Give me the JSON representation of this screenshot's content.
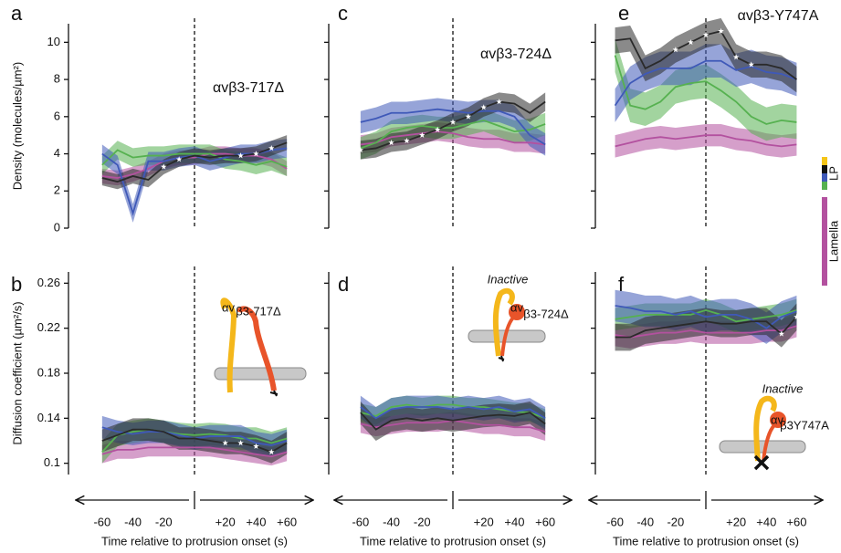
{
  "chart_data": [
    {
      "type": "line",
      "label": "a",
      "title": "αvβ3-717Δ",
      "ylabel": "Density (molecules/µm²)",
      "x": [
        -60,
        -50,
        -40,
        -30,
        -20,
        -10,
        0,
        10,
        20,
        30,
        40,
        50,
        60
      ],
      "xlim": [
        -70,
        70
      ],
      "ylim": [
        0,
        11
      ],
      "yticks": [
        0,
        2,
        4,
        6,
        8,
        10
      ],
      "tick_labels": true,
      "series": [
        {
          "color": "#2a2a2a",
          "values": [
            2.7,
            2.5,
            2.8,
            2.6,
            3.3,
            3.7,
            3.9,
            3.8,
            3.9,
            3.9,
            4.0,
            4.3,
            4.6
          ],
          "error": 0.4
        },
        {
          "color": "#3f59b8",
          "values": [
            4.0,
            3.4,
            0.8,
            3.6,
            3.6,
            3.8,
            3.9,
            3.6,
            3.8,
            4.0,
            4.0,
            4.2,
            4.3
          ],
          "error": 0.5
        },
        {
          "color": "#56b150",
          "values": [
            3.4,
            4.2,
            3.8,
            3.9,
            3.9,
            4.0,
            4.0,
            4.0,
            3.7,
            3.6,
            3.4,
            3.6,
            3.3
          ],
          "error": 0.5
        },
        {
          "color": "#b3519f",
          "values": [
            2.8,
            2.7,
            2.9,
            3.2,
            3.6,
            3.8,
            3.8,
            4.0,
            4.0,
            3.9,
            3.9,
            3.7,
            3.2
          ],
          "error": 0.4
        }
      ],
      "stars": [
        -20,
        -10,
        30,
        40,
        50
      ]
    },
    {
      "type": "line",
      "label": "b",
      "ylabel": "Diffusion coefficient (µm²/s)",
      "xlabel": "Time relative to protrusion onset (s)",
      "annotations": [
        "αv",
        "β3-717Δ"
      ],
      "x": [
        -60,
        -50,
        -40,
        -30,
        -20,
        -10,
        0,
        10,
        20,
        30,
        40,
        50,
        60
      ],
      "xlim": [
        -70,
        70
      ],
      "xticks": [
        -60,
        -40,
        -20,
        {
          "value": 20,
          "label": "+20"
        },
        {
          "value": 40,
          "label": "+40"
        },
        {
          "value": 60,
          "label": "+60"
        }
      ],
      "ylim": [
        0.09,
        0.27
      ],
      "yticks": [
        0.1,
        0.14,
        0.18,
        0.22,
        0.26
      ],
      "tick_labels": true,
      "series": [
        {
          "color": "#2a2a2a",
          "values": [
            0.12,
            0.125,
            0.13,
            0.13,
            0.128,
            0.122,
            0.122,
            0.12,
            0.118,
            0.118,
            0.115,
            0.11,
            0.118
          ],
          "error": 0.01
        },
        {
          "color": "#3f59b8",
          "values": [
            0.132,
            0.128,
            0.126,
            0.128,
            0.128,
            0.125,
            0.122,
            0.124,
            0.124,
            0.124,
            0.118,
            0.116,
            0.12
          ],
          "error": 0.01
        },
        {
          "color": "#56b150",
          "values": [
            0.11,
            0.125,
            0.128,
            0.13,
            0.128,
            0.126,
            0.125,
            0.126,
            0.125,
            0.122,
            0.122,
            0.118,
            0.122
          ],
          "error": 0.01
        },
        {
          "color": "#b3519f",
          "values": [
            0.108,
            0.112,
            0.112,
            0.114,
            0.114,
            0.114,
            0.114,
            0.114,
            0.112,
            0.11,
            0.108,
            0.106,
            0.11
          ],
          "error": 0.008
        }
      ],
      "stars": [
        20,
        30,
        40,
        50
      ]
    },
    {
      "type": "line",
      "label": "c",
      "title": "αvβ3-724Δ",
      "x": [
        -60,
        -50,
        -40,
        -30,
        -20,
        -10,
        0,
        10,
        20,
        30,
        40,
        50,
        60
      ],
      "xlim": [
        -70,
        70
      ],
      "ylim": [
        0,
        11
      ],
      "yticks": [
        0,
        2,
        4,
        6,
        8,
        10
      ],
      "tick_labels": false,
      "series": [
        {
          "color": "#2a2a2a",
          "values": [
            4.2,
            4.3,
            4.6,
            4.7,
            5.0,
            5.3,
            5.7,
            6.0,
            6.5,
            6.8,
            6.7,
            6.2,
            6.8
          ],
          "error": 0.5
        },
        {
          "color": "#3f59b8",
          "values": [
            5.7,
            5.9,
            6.2,
            6.2,
            6.3,
            6.4,
            6.3,
            6.2,
            6.3,
            6.3,
            6.0,
            5.0,
            4.5
          ],
          "error": 0.6
        },
        {
          "color": "#56b150",
          "values": [
            4.3,
            4.6,
            5.2,
            5.4,
            5.5,
            5.4,
            5.4,
            5.6,
            5.8,
            5.5,
            5.2,
            5.3,
            5.6
          ],
          "error": 0.6
        },
        {
          "color": "#b3519f",
          "values": [
            4.5,
            4.6,
            4.9,
            5.0,
            5.1,
            5.2,
            5.1,
            4.9,
            4.8,
            4.8,
            4.6,
            4.6,
            4.5
          ],
          "error": 0.5
        }
      ],
      "stars": [
        -60,
        -40,
        -30,
        -20,
        -10,
        0,
        10,
        20,
        30
      ]
    },
    {
      "type": "line",
      "label": "d",
      "xlabel": "Time relative to protrusion onset (s)",
      "annotations": [
        "Inactive",
        "αv",
        "β3-724Δ"
      ],
      "x": [
        -60,
        -50,
        -40,
        -30,
        -20,
        -10,
        0,
        10,
        20,
        30,
        40,
        50,
        60
      ],
      "xlim": [
        -70,
        70
      ],
      "xticks": [
        -60,
        -40,
        -20,
        {
          "value": 20,
          "label": "+20"
        },
        {
          "value": 40,
          "label": "+40"
        },
        {
          "value": 60,
          "label": "+60"
        }
      ],
      "ylim": [
        0.09,
        0.27
      ],
      "yticks": [
        0.1,
        0.14,
        0.18,
        0.22,
        0.26
      ],
      "tick_labels": false,
      "series": [
        {
          "color": "#2a2a2a",
          "values": [
            0.145,
            0.13,
            0.138,
            0.14,
            0.138,
            0.14,
            0.138,
            0.14,
            0.142,
            0.143,
            0.142,
            0.145,
            0.135
          ],
          "error": 0.01
        },
        {
          "color": "#3f59b8",
          "values": [
            0.15,
            0.14,
            0.148,
            0.15,
            0.15,
            0.15,
            0.148,
            0.15,
            0.148,
            0.15,
            0.146,
            0.148,
            0.14
          ],
          "error": 0.01
        },
        {
          "color": "#56b150",
          "values": [
            0.145,
            0.142,
            0.15,
            0.152,
            0.15,
            0.152,
            0.152,
            0.15,
            0.15,
            0.148,
            0.146,
            0.145,
            0.14
          ],
          "error": 0.008
        },
        {
          "color": "#b3519f",
          "values": [
            0.135,
            0.132,
            0.134,
            0.136,
            0.136,
            0.136,
            0.138,
            0.136,
            0.134,
            0.134,
            0.132,
            0.132,
            0.128
          ],
          "error": 0.008
        }
      ],
      "stars": []
    },
    {
      "type": "line",
      "label": "e",
      "title": "αvβ3-Y747A",
      "x": [
        -60,
        -50,
        -40,
        -30,
        -20,
        -10,
        0,
        10,
        20,
        30,
        40,
        50,
        60
      ],
      "xlim": [
        -70,
        70
      ],
      "ylim": [
        0,
        11
      ],
      "yticks": [
        0,
        2,
        4,
        6,
        8,
        10
      ],
      "tick_labels": false,
      "series": [
        {
          "color": "#2a2a2a",
          "values": [
            10.1,
            10.2,
            8.6,
            9.0,
            9.6,
            10.0,
            10.4,
            10.6,
            9.2,
            8.8,
            8.8,
            8.6,
            8.0
          ],
          "error": 0.7
        },
        {
          "color": "#3f59b8",
          "values": [
            6.6,
            7.8,
            8.3,
            8.6,
            8.6,
            8.6,
            9.0,
            9.0,
            8.5,
            8.7,
            8.4,
            8.3,
            8.0
          ],
          "error": 0.9
        },
        {
          "color": "#56b150",
          "values": [
            9.3,
            6.6,
            6.4,
            6.8,
            7.6,
            7.8,
            7.9,
            7.4,
            6.8,
            6.0,
            5.6,
            5.8,
            5.7
          ],
          "error": 0.9
        },
        {
          "color": "#b3519f",
          "values": [
            4.4,
            4.6,
            4.8,
            4.9,
            4.8,
            4.9,
            5.0,
            5.0,
            4.8,
            4.7,
            4.5,
            4.4,
            4.5
          ],
          "error": 0.6
        }
      ],
      "stars": [
        -20,
        -10,
        0,
        10,
        20,
        30
      ]
    },
    {
      "type": "line",
      "label": "f",
      "xlabel": "Time relative to protrusion onset (s)",
      "annotations": [
        "Inactive",
        "αv",
        "β3Y747A"
      ],
      "x": [
        -60,
        -50,
        -40,
        -30,
        -20,
        -10,
        0,
        10,
        20,
        30,
        40,
        50,
        60
      ],
      "xlim": [
        -70,
        70
      ],
      "xticks": [
        -60,
        -40,
        -20,
        {
          "value": 20,
          "label": "+20"
        },
        {
          "value": 40,
          "label": "+40"
        },
        {
          "value": 60,
          "label": "+60"
        }
      ],
      "ylim": [
        0.09,
        0.27
      ],
      "yticks": [
        0.1,
        0.14,
        0.18,
        0.22,
        0.26
      ],
      "tick_labels": false,
      "series": [
        {
          "color": "#2a2a2a",
          "values": [
            0.212,
            0.212,
            0.218,
            0.22,
            0.222,
            0.224,
            0.226,
            0.224,
            0.224,
            0.226,
            0.226,
            0.215,
            0.23
          ],
          "error": 0.012
        },
        {
          "color": "#3f59b8",
          "values": [
            0.24,
            0.238,
            0.235,
            0.235,
            0.232,
            0.235,
            0.23,
            0.232,
            0.232,
            0.228,
            0.22,
            0.23,
            0.235
          ],
          "error": 0.014
        },
        {
          "color": "#56b150",
          "values": [
            0.228,
            0.23,
            0.232,
            0.232,
            0.232,
            0.232,
            0.236,
            0.232,
            0.226,
            0.228,
            0.23,
            0.232,
            0.236
          ],
          "error": 0.01
        },
        {
          "color": "#b3519f",
          "values": [
            0.214,
            0.212,
            0.214,
            0.216,
            0.216,
            0.218,
            0.216,
            0.216,
            0.216,
            0.216,
            0.218,
            0.218,
            0.222
          ],
          "error": 0.01
        }
      ],
      "stars": [
        50,
        60
      ]
    }
  ],
  "legend": {
    "items": [
      {
        "label": "LP",
        "colors": [
          "#f5c518",
          "#111111",
          "#3f59b8",
          "#56b150"
        ]
      },
      {
        "label": "Lamella",
        "colors": [
          "#b3519f"
        ]
      }
    ]
  }
}
